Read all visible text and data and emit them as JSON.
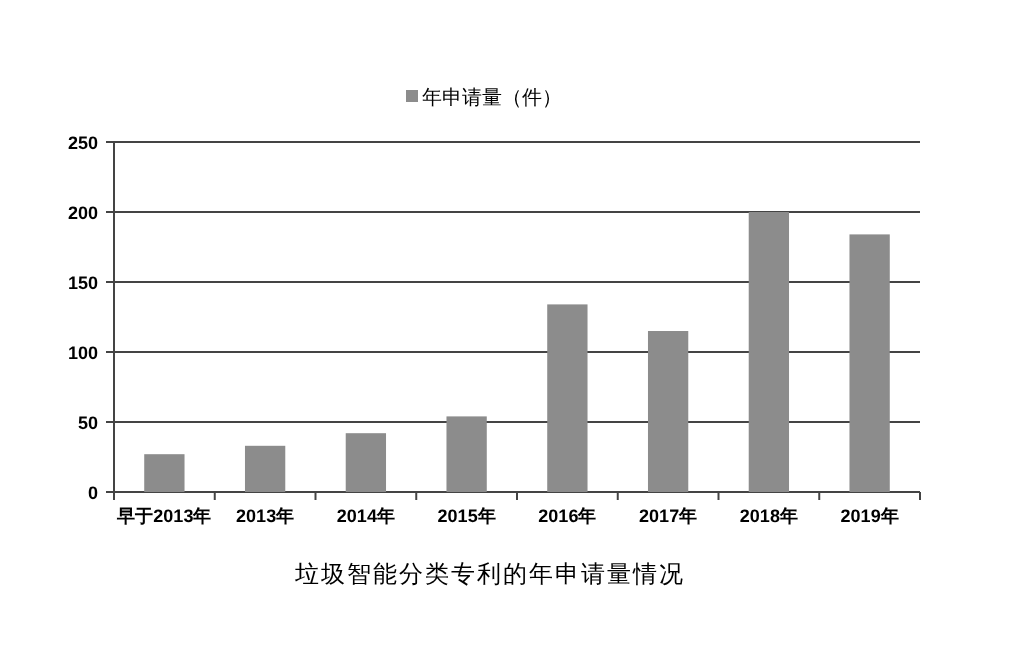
{
  "chart_data": {
    "type": "bar",
    "title": "垃圾智能分类专利的年申请量情况",
    "categories": [
      "早于2013年",
      "2013年",
      "2014年",
      "2015年",
      "2016年",
      "2017年",
      "2018年",
      "2019年"
    ],
    "series": [
      {
        "name": "年申请量（件）",
        "color": "#8c8c8c",
        "values": [
          27,
          33,
          42,
          54,
          134,
          115,
          200,
          184
        ]
      }
    ],
    "ylim": [
      0,
      250
    ],
    "yticks": [
      0,
      50,
      100,
      150,
      200,
      250
    ],
    "grid": "y",
    "legend": "top"
  }
}
